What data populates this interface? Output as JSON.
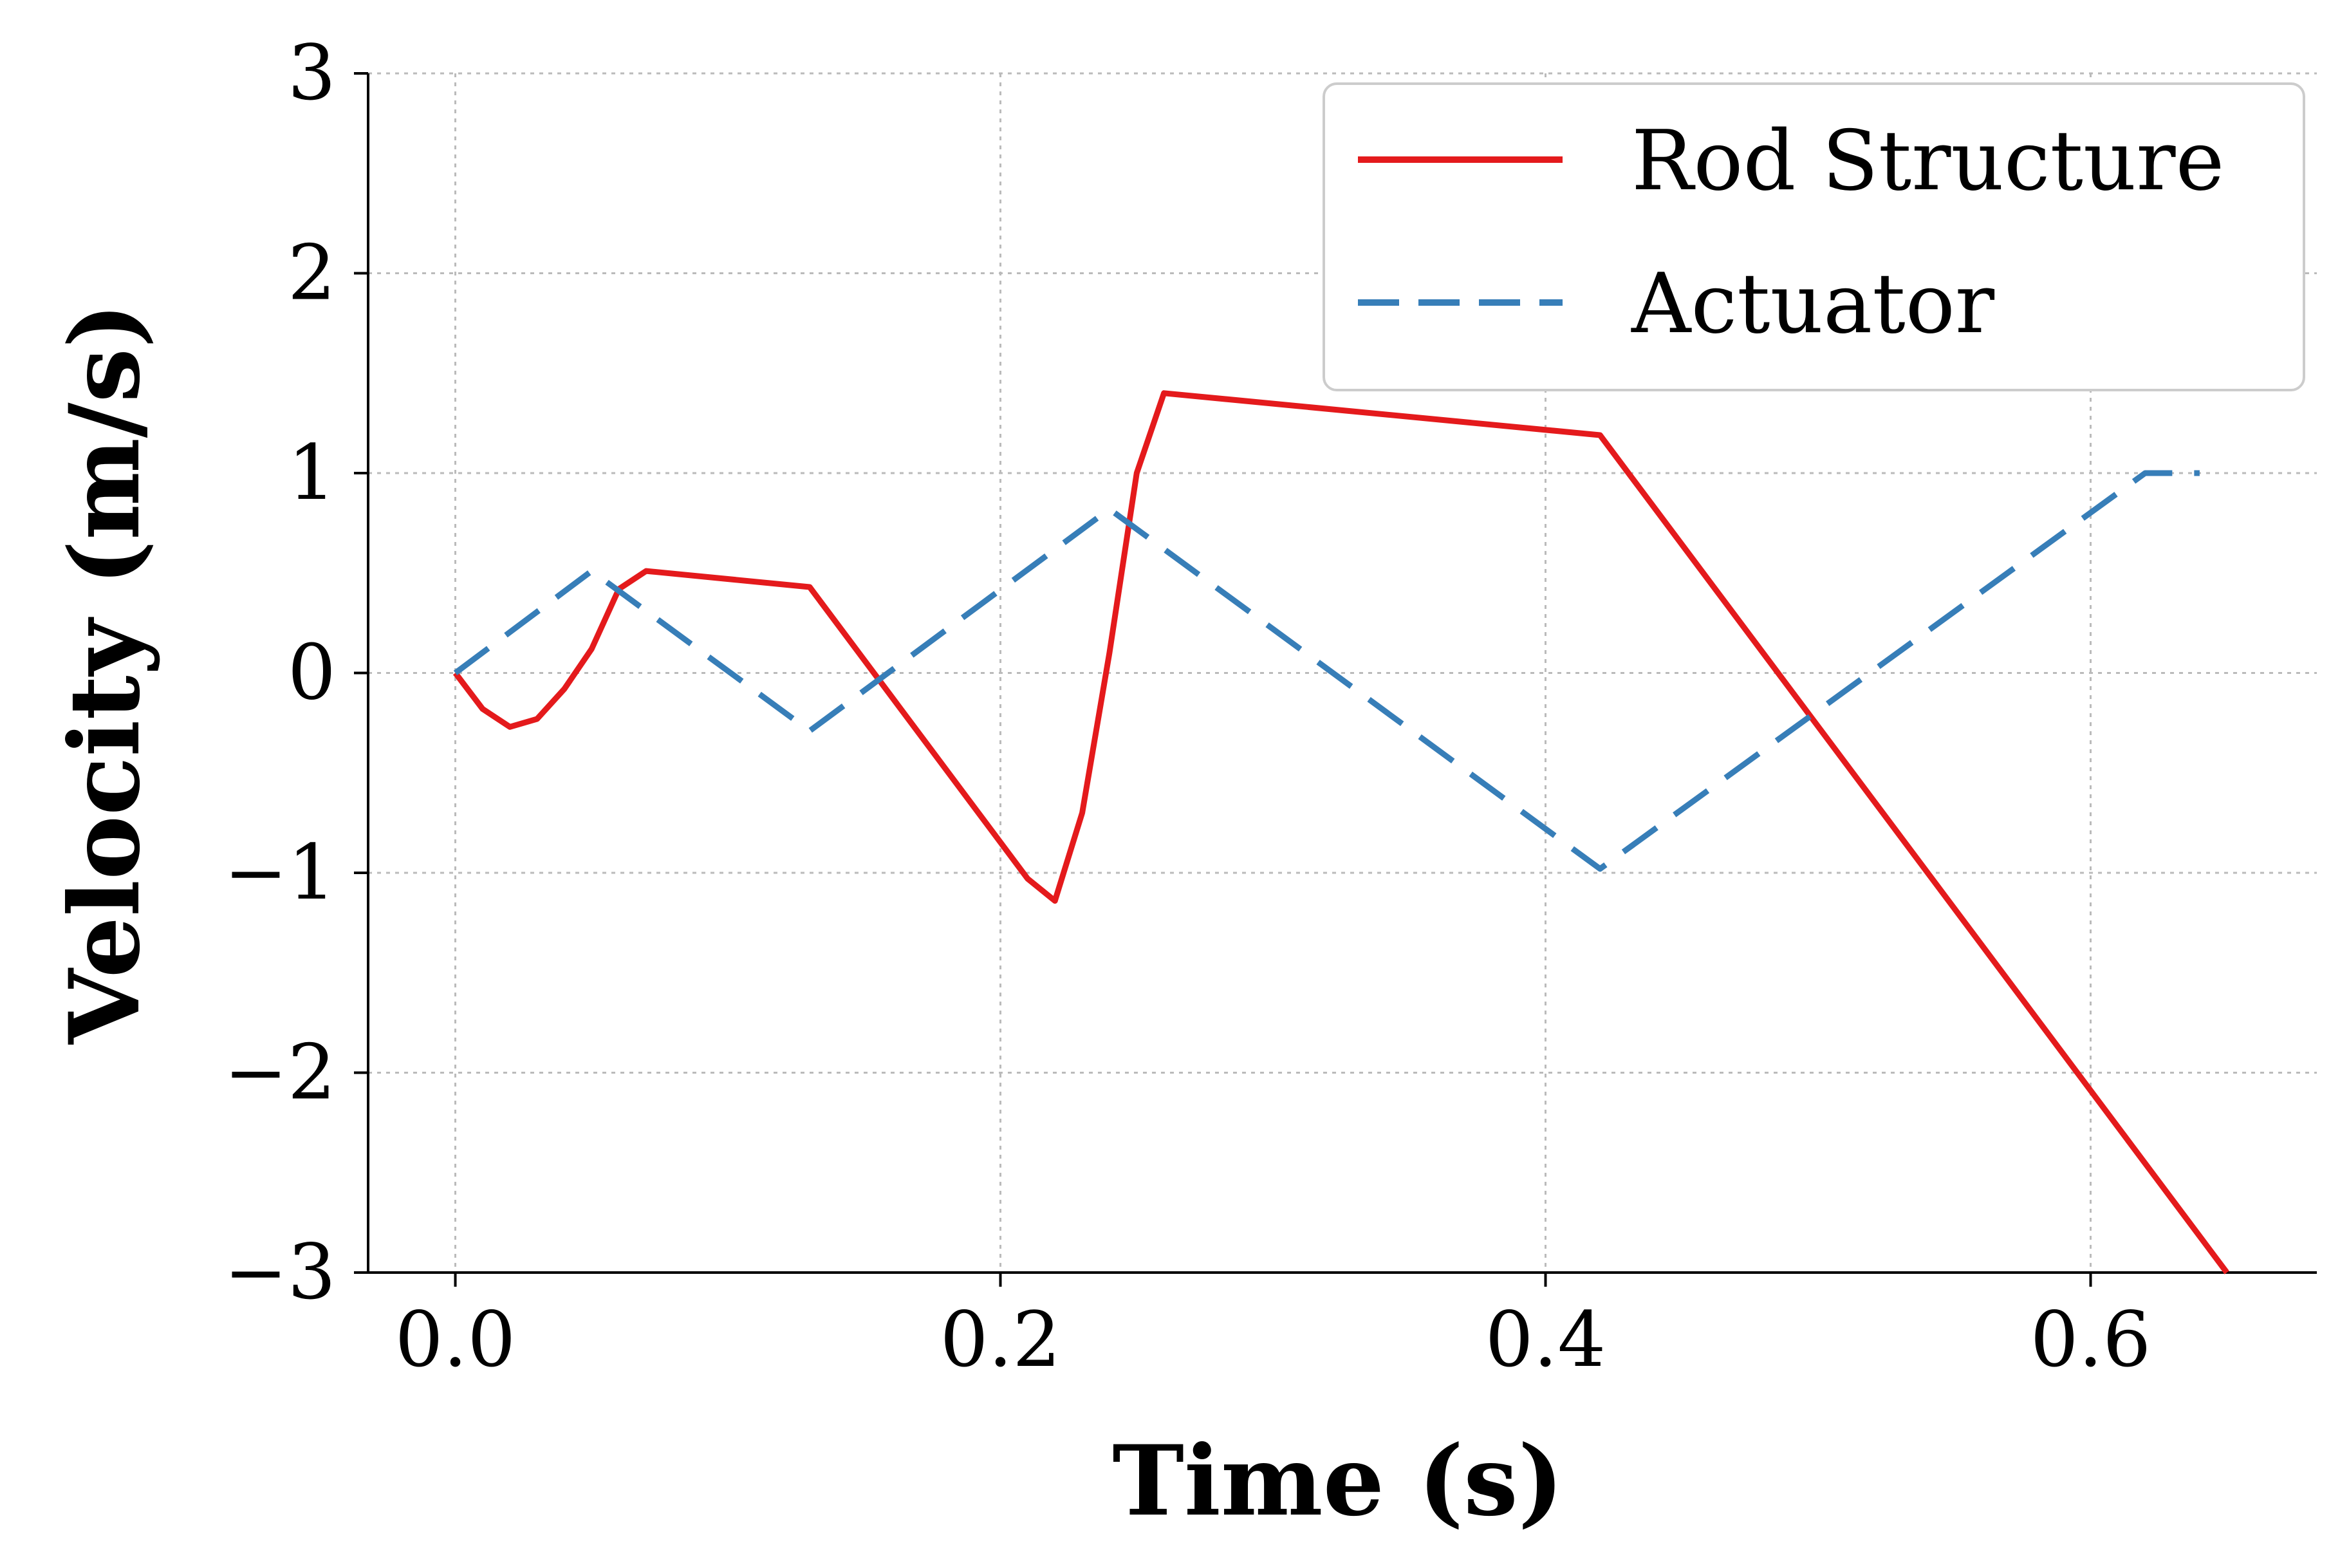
{
  "chart_data": {
    "type": "line",
    "xlabel": "Time (s)",
    "ylabel": "Velocity (m/s)",
    "xlim": [
      -0.032,
      0.683
    ],
    "ylim": [
      -3,
      3
    ],
    "xticks": [
      0.0,
      0.2,
      0.4,
      0.6
    ],
    "xtick_labels": [
      "0.0",
      "0.2",
      "0.4",
      "0.6"
    ],
    "yticks": [
      -3,
      -2,
      -1,
      0,
      1,
      2,
      3
    ],
    "ytick_labels": [
      "−3",
      "−2",
      "−1",
      "0",
      "1",
      "2",
      "3"
    ],
    "grid": true,
    "legend_position": "top-right",
    "series": [
      {
        "name": "Rod Structure",
        "color": "#e41a1c",
        "style": "solid",
        "x": [
          0.0,
          0.01,
          0.02,
          0.03,
          0.04,
          0.05,
          0.06,
          0.07,
          0.13,
          0.21,
          0.22,
          0.23,
          0.24,
          0.25,
          0.26,
          0.42,
          0.65
        ],
        "y": [
          0.0,
          -0.18,
          -0.27,
          -0.23,
          -0.08,
          0.12,
          0.42,
          0.51,
          0.43,
          -1.03,
          -1.14,
          -0.7,
          0.1,
          1.0,
          1.4,
          1.19,
          -3.0
        ]
      },
      {
        "name": "Actuator",
        "color": "#377eb8",
        "style": "dashed",
        "x": [
          0.0,
          0.05,
          0.13,
          0.24,
          0.42,
          0.62,
          0.64
        ],
        "y": [
          0.0,
          0.51,
          -0.29,
          0.82,
          -0.98,
          1.0,
          1.0
        ]
      }
    ]
  }
}
